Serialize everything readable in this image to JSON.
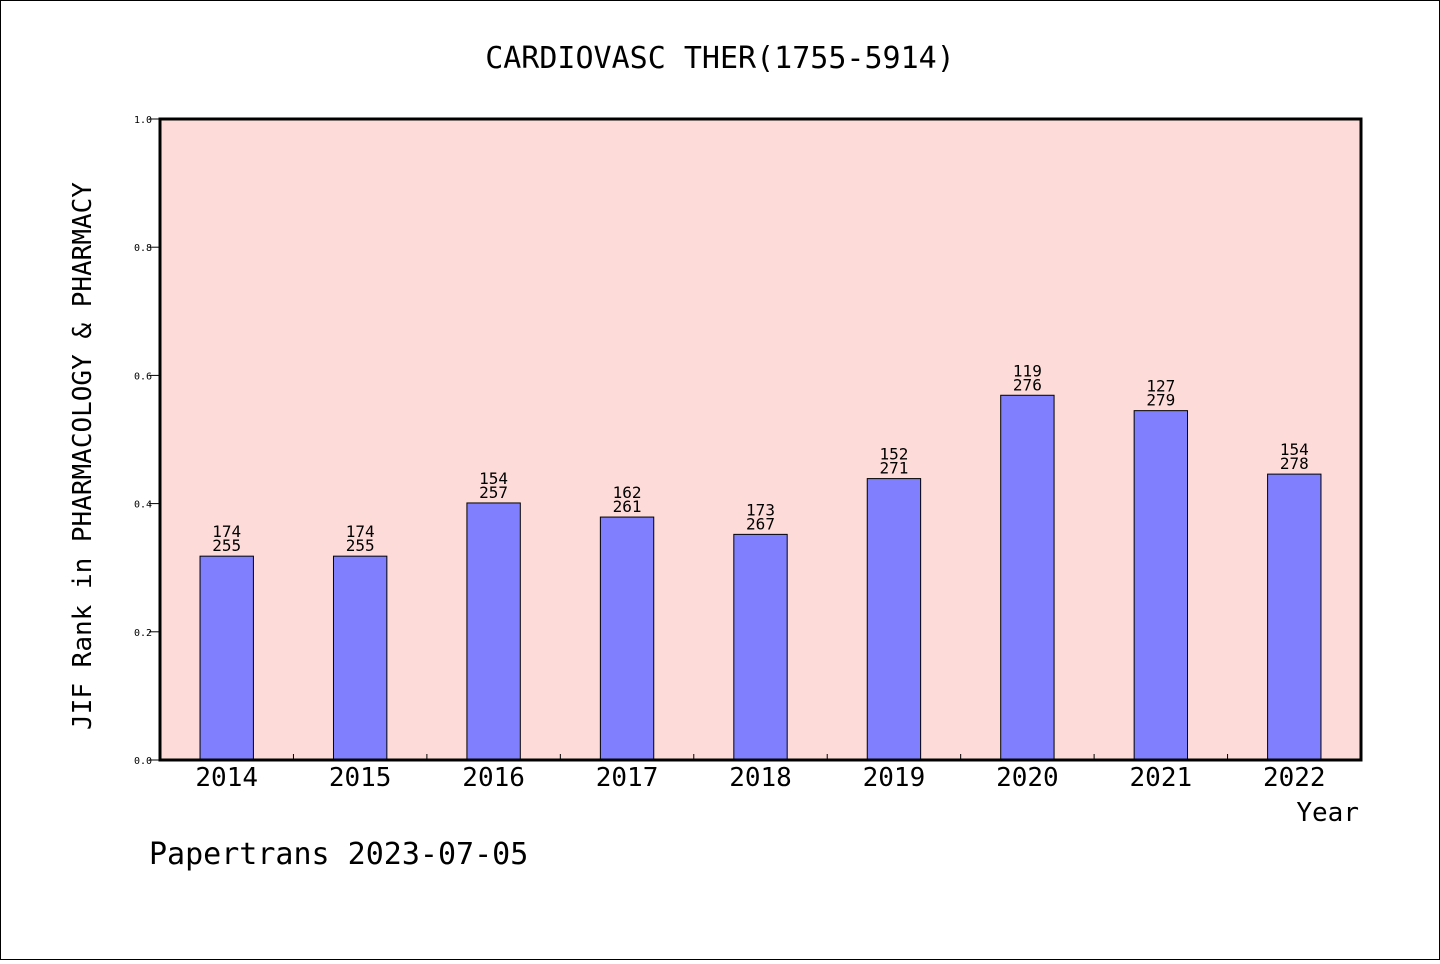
{
  "chart_data": {
    "type": "bar",
    "title": "CARDIOVASC THER(1755-5914)",
    "xlabel": "Year",
    "ylabel": "JIF Rank in PHARMACOLOGY & PHARMACY",
    "ylim": [
      0,
      1.0
    ],
    "yticks": [
      "0.0",
      "0.2",
      "0.4",
      "0.6",
      "0.8",
      "1.0"
    ],
    "categories": [
      "2014",
      "2015",
      "2016",
      "2017",
      "2018",
      "2019",
      "2020",
      "2021",
      "2022"
    ],
    "values": [
      0.318,
      0.318,
      0.401,
      0.379,
      0.352,
      0.439,
      0.569,
      0.545,
      0.446
    ],
    "rank_labels": [
      "174",
      "174",
      "154",
      "162",
      "173",
      "152",
      "119",
      "127",
      "154"
    ],
    "total_labels": [
      "255",
      "255",
      "257",
      "261",
      "267",
      "271",
      "276",
      "279",
      "278"
    ],
    "grid": false,
    "colors": {
      "bar": "#8080ff",
      "plot_background": "#fddbd8"
    }
  },
  "footer": {
    "text": "Papertrans 2023-07-05"
  }
}
